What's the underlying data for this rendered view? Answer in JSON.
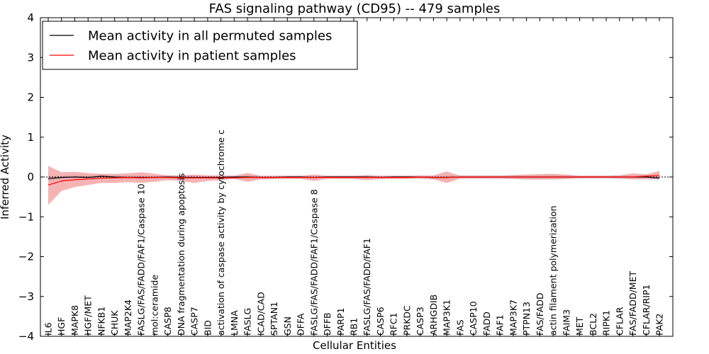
{
  "chart_data": {
    "type": "line",
    "title": "FAS signaling pathway (CD95) -- 479 samples",
    "xlabel": "Cellular Entities",
    "ylabel": "Inferred Activity",
    "ylim": [
      -4,
      4
    ],
    "yticks": [
      -4,
      -3,
      -2,
      -1,
      0,
      1,
      2,
      3,
      4
    ],
    "ytick_labels": [
      "−4",
      "−3",
      "−2",
      "−1",
      "0",
      "1",
      "2",
      "3",
      "4"
    ],
    "grid": false,
    "legend_position": "top-left",
    "categories": [
      "IL6",
      "HGF",
      "MAPK8",
      "HGF/MET",
      "NFKB1",
      "CHUK",
      "MAP2K4",
      "FASLG/FAS/FADD/FAF1/Caspase 10",
      "mol:ceramide",
      "CASP8",
      "DNA fragmentation during apoptosis",
      "CASP7",
      "BID",
      "activation of caspase activity by cytochrome c",
      "LMNA",
      "FASLG",
      "ICAD/CAD",
      "SPTAN1",
      "GSN",
      "DFFA",
      "FASLG/FAS/FADD/FAF1/Caspase 8",
      "DFFB",
      "PARP1",
      "RB1",
      "FASLG/FAS/FADD/FAF1",
      "CASP6",
      "RFC1",
      "PRKDC",
      "CASP3",
      "ARHGDIB",
      "MAP3K1",
      "FAS",
      "CASP10",
      "FADD",
      "FAF1",
      "MAP3K7",
      "PTPN13",
      "FAS/FADD",
      "actin filament polymerization",
      "FAIM3",
      "MET",
      "BCL2",
      "RIPK1",
      "CFLAR",
      "FAS/FADD/MET",
      "CFLAR/RIP1",
      "PAK2"
    ],
    "series": [
      {
        "name": "Mean activity in all permuted samples",
        "color": "#000000",
        "band_color": "#c8c8d6",
        "values": [
          -0.04,
          -0.01,
          0.0,
          -0.01,
          0.02,
          0.0,
          -0.01,
          -0.01,
          -0.01,
          0.0,
          -0.01,
          -0.01,
          -0.01,
          -0.01,
          0.0,
          0.0,
          -0.01,
          -0.01,
          0.0,
          0.0,
          -0.01,
          0.0,
          0.0,
          0.0,
          0.0,
          -0.01,
          0.0,
          0.0,
          0.0,
          -0.01,
          -0.01,
          0.0,
          0.0,
          0.0,
          0.0,
          0.0,
          0.0,
          0.0,
          0.0,
          0.0,
          0.0,
          0.0,
          0.0,
          0.0,
          0.0,
          0.0,
          -0.03
        ],
        "band_lower": [
          -0.1,
          -0.06,
          -0.05,
          -0.06,
          -0.04,
          -0.05,
          -0.06,
          -0.06,
          -0.05,
          -0.05,
          -0.06,
          -0.06,
          -0.05,
          -0.06,
          -0.04,
          -0.05,
          -0.05,
          -0.05,
          -0.04,
          -0.04,
          -0.05,
          -0.04,
          -0.04,
          -0.04,
          -0.04,
          -0.05,
          -0.04,
          -0.04,
          -0.05,
          -0.05,
          -0.06,
          -0.05,
          -0.05,
          -0.05,
          -0.05,
          -0.05,
          -0.06,
          -0.06,
          -0.06,
          -0.05,
          -0.04,
          -0.04,
          -0.04,
          -0.05,
          -0.05,
          -0.06,
          -0.09
        ],
        "band_upper": [
          0.02,
          0.04,
          0.05,
          0.04,
          0.07,
          0.05,
          0.04,
          0.04,
          0.03,
          0.05,
          0.04,
          0.04,
          0.03,
          0.04,
          0.04,
          0.05,
          0.03,
          0.03,
          0.04,
          0.04,
          0.03,
          0.04,
          0.04,
          0.04,
          0.04,
          0.03,
          0.04,
          0.04,
          0.05,
          0.03,
          0.04,
          0.05,
          0.05,
          0.05,
          0.05,
          0.05,
          0.06,
          0.06,
          0.06,
          0.05,
          0.04,
          0.04,
          0.04,
          0.05,
          0.05,
          0.06,
          0.03
        ]
      },
      {
        "name": "Mean activity in patient samples",
        "color": "#ff0000",
        "band_color": "#f08080",
        "values": [
          -0.2,
          -0.1,
          -0.07,
          -0.05,
          -0.03,
          -0.02,
          -0.01,
          -0.02,
          -0.01,
          -0.01,
          -0.02,
          -0.02,
          -0.02,
          -0.02,
          -0.02,
          -0.01,
          -0.01,
          -0.01,
          -0.01,
          -0.01,
          -0.01,
          -0.01,
          -0.01,
          -0.01,
          -0.01,
          -0.01,
          -0.01,
          -0.01,
          0.0,
          -0.01,
          -0.01,
          0.0,
          0.0,
          0.0,
          0.0,
          0.0,
          0.0,
          0.0,
          0.0,
          0.0,
          0.0,
          0.0,
          0.0,
          0.0,
          0.0,
          0.02,
          0.04
        ],
        "band_lower": [
          -0.7,
          -0.35,
          -0.25,
          -0.2,
          -0.15,
          -0.15,
          -0.13,
          -0.15,
          -0.12,
          -0.08,
          -0.1,
          -0.15,
          -0.1,
          -0.08,
          -0.05,
          -0.12,
          -0.06,
          -0.05,
          -0.05,
          -0.05,
          -0.1,
          -0.05,
          -0.05,
          -0.05,
          -0.08,
          -0.05,
          -0.05,
          -0.05,
          -0.04,
          -0.06,
          -0.15,
          -0.04,
          -0.04,
          -0.04,
          -0.04,
          -0.05,
          -0.06,
          -0.06,
          -0.06,
          -0.05,
          -0.03,
          -0.03,
          -0.03,
          -0.04,
          -0.06,
          -0.05,
          -0.04
        ],
        "band_upper": [
          0.28,
          0.12,
          0.13,
          0.1,
          0.08,
          0.08,
          0.09,
          0.12,
          0.08,
          0.04,
          0.04,
          0.06,
          0.04,
          0.04,
          0.03,
          0.1,
          0.03,
          0.03,
          0.03,
          0.03,
          0.06,
          0.03,
          0.03,
          0.03,
          0.05,
          0.03,
          0.03,
          0.03,
          0.03,
          0.04,
          0.14,
          0.03,
          0.03,
          0.03,
          0.03,
          0.05,
          0.06,
          0.07,
          0.08,
          0.06,
          0.03,
          0.03,
          0.03,
          0.04,
          0.09,
          0.07,
          0.15
        ]
      }
    ]
  }
}
